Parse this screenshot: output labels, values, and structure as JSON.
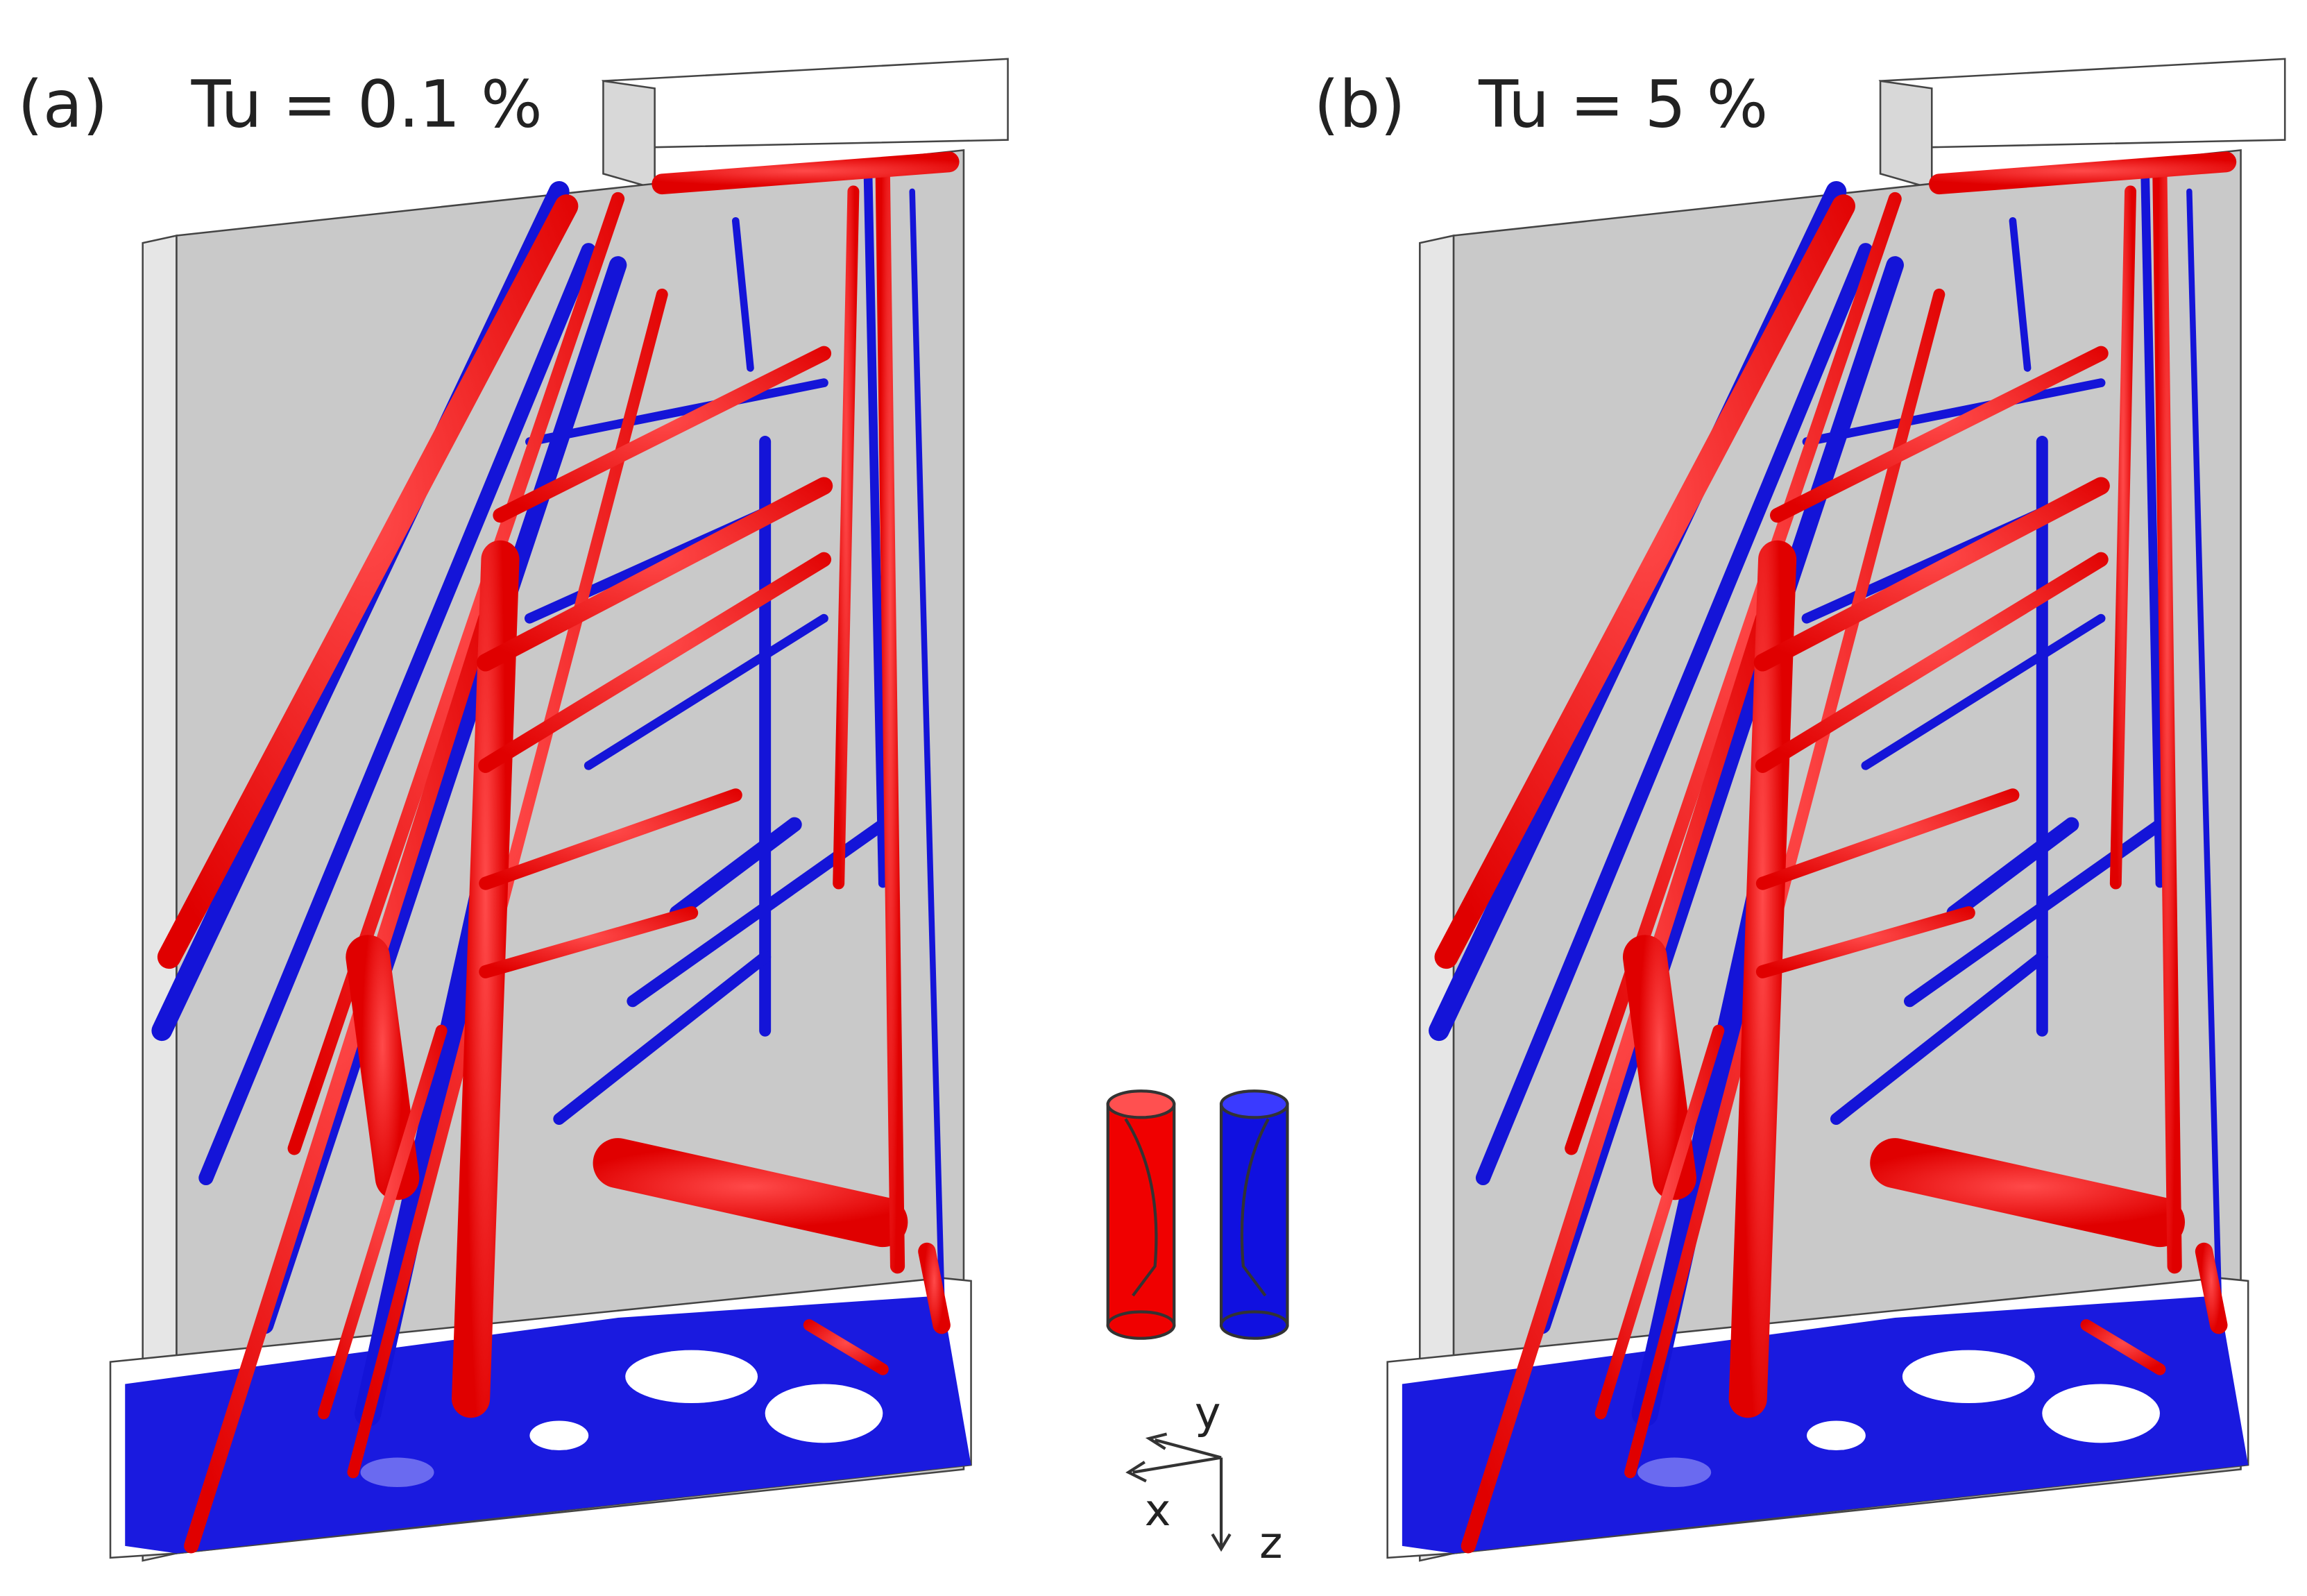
{
  "panels": [
    {
      "label": "(a)",
      "title": "Tu = 0.1 %"
    },
    {
      "label": "(b)",
      "title": "Tu = 5 %"
    }
  ],
  "axes": {
    "y": "y",
    "x": "x",
    "z": "z"
  }
}
